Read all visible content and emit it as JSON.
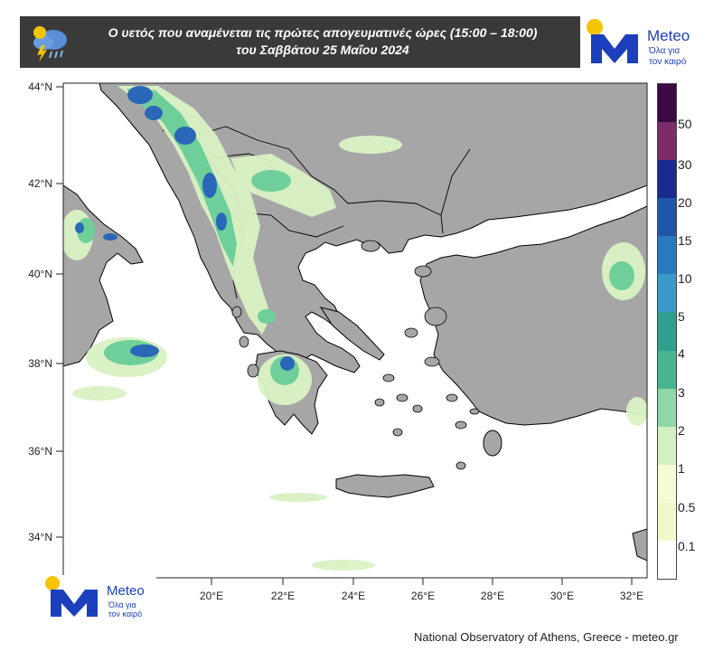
{
  "header": {
    "title_line1": "Ο υετός που αναμένεται τις πρώτες απογευματινές ώρες (15:00 – 18:00)",
    "title_line2": "του Σαββάτου 25 Μαΐου 2024",
    "icon": "rain-cloud-lightning-icon"
  },
  "logo": {
    "brand": "Meteo",
    "tagline_line1": "Όλα για",
    "tagline_line2": "τον καιρό",
    "colors": {
      "blue": "#1b3fbd",
      "sun": "#f5c400"
    }
  },
  "map": {
    "lat_labels": [
      "44°N",
      "42°N",
      "40°N",
      "38°N",
      "36°N",
      "34°N"
    ],
    "lon_labels": [
      "20°E",
      "22°E",
      "24°E",
      "26°E",
      "28°E",
      "30°E",
      "32°E"
    ],
    "colors": {
      "land": "#a6a6a6",
      "sea": "#ffffff",
      "border": "#000000"
    }
  },
  "colorbar": {
    "labels": [
      "50",
      "30",
      "20",
      "15",
      "10",
      "5",
      "4",
      "3",
      "2",
      "1",
      "0.5",
      "0.1"
    ],
    "colors": [
      "#3b0a45",
      "#7b2d6a",
      "#1a2b8f",
      "#1f56a8",
      "#2a78bf",
      "#3a9bc9",
      "#2fa08e",
      "#47b592",
      "#8fd7a6",
      "#d4f0c0",
      "#f5fbd2",
      "#f3f8cc",
      "#ffffff"
    ]
  },
  "credit": "National Observatory of Athens, Greece - meteo.gr"
}
